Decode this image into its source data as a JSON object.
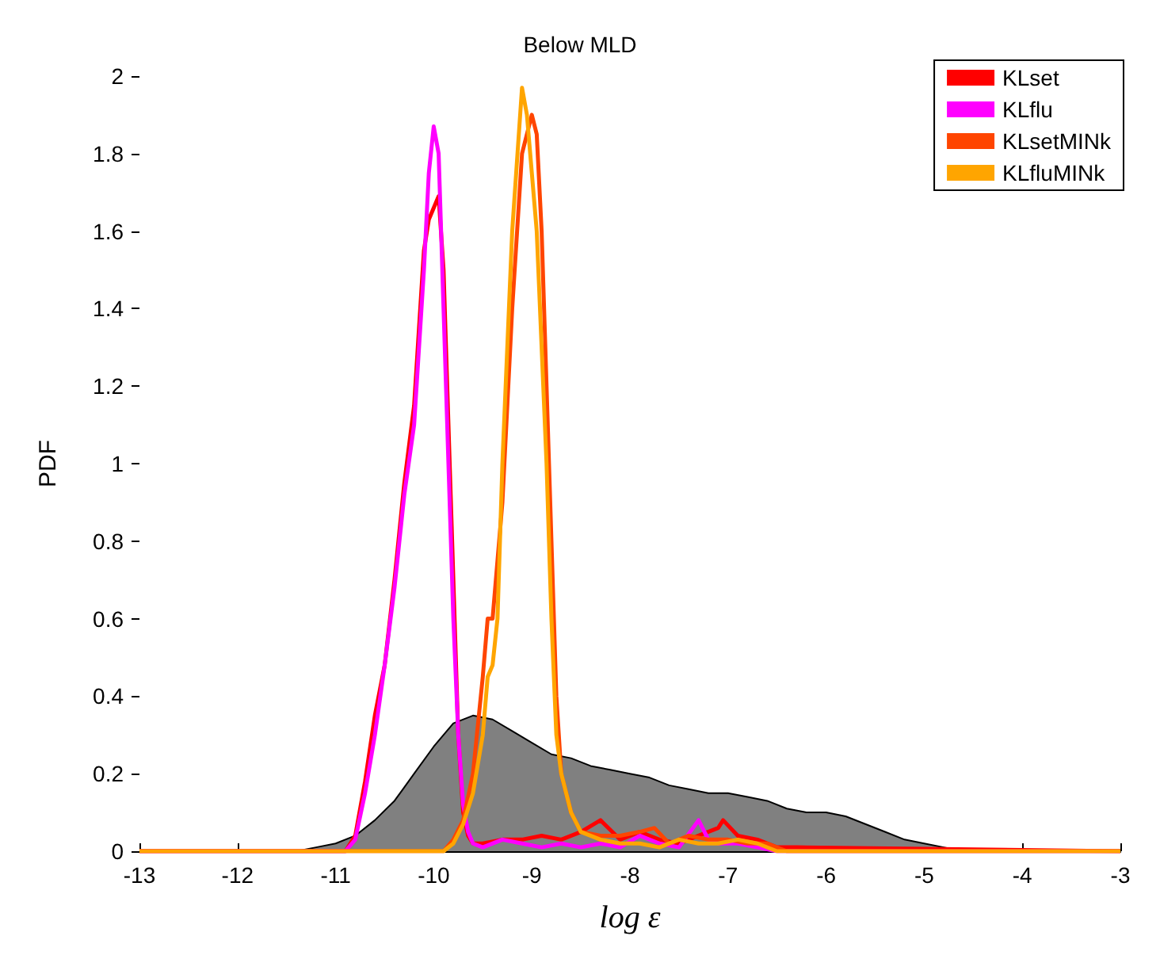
{
  "chart_data": {
    "type": "line",
    "title": "Below MLD",
    "xlabel": "log ε",
    "ylabel": "PDF",
    "xlim": [
      -13,
      -3
    ],
    "xticks": [
      -13,
      -12,
      -11,
      -10,
      -9,
      -8,
      -7,
      -6,
      -5,
      -4,
      -3
    ],
    "ylim": [
      0,
      2
    ],
    "yticks": [
      0,
      0.2,
      0.4,
      0.6,
      0.8,
      1,
      1.2,
      1.4,
      1.6,
      1.8,
      2
    ],
    "grid": false,
    "legend": "top right",
    "marker": "none",
    "line_style": "solid",
    "series": [
      {
        "type": "area",
        "color": "#808080",
        "x": [
          -13,
          -11.4,
          -11.2,
          -11,
          -10.8,
          -10.6,
          -10.4,
          -10.2,
          -10,
          -9.8,
          -9.6,
          -9.4,
          -9.2,
          -9,
          -8.8,
          -8.6,
          -8.4,
          -8.2,
          -8,
          -7.8,
          -7.6,
          -7.4,
          -7.2,
          -7,
          -6.8,
          -6.6,
          -6.4,
          -6.2,
          -6,
          -5.8,
          -5.6,
          -5.4,
          -5.2,
          -5,
          -4.8,
          -4.6,
          -3
        ],
        "values": [
          0,
          0,
          0.01,
          0.02,
          0.04,
          0.08,
          0.13,
          0.2,
          0.27,
          0.33,
          0.35,
          0.34,
          0.31,
          0.28,
          0.25,
          0.24,
          0.22,
          0.21,
          0.2,
          0.19,
          0.17,
          0.16,
          0.15,
          0.15,
          0.14,
          0.13,
          0.11,
          0.1,
          0.1,
          0.09,
          0.07,
          0.05,
          0.03,
          0.02,
          0.01,
          0,
          0
        ]
      },
      {
        "name": "KLset",
        "color": "#ff0000",
        "x": [
          -13,
          -10.9,
          -10.8,
          -10.7,
          -10.6,
          -10.5,
          -10.4,
          -10.3,
          -10.2,
          -10.1,
          -10.05,
          -10,
          -9.95,
          -9.9,
          -9.85,
          -9.8,
          -9.75,
          -9.7,
          -9.65,
          -9.6,
          -9.5,
          -9.3,
          -9.1,
          -8.9,
          -8.7,
          -8.5,
          -8.3,
          -8.1,
          -7.9,
          -7.7,
          -7.5,
          -7.3,
          -7.1,
          -7.05,
          -6.9,
          -6.7,
          -6.5,
          -6.3,
          -3
        ],
        "values": [
          0,
          0,
          0.04,
          0.18,
          0.35,
          0.48,
          0.7,
          0.95,
          1.15,
          1.55,
          1.63,
          1.66,
          1.69,
          1.5,
          1.1,
          0.7,
          0.3,
          0.1,
          0.04,
          0.02,
          0.02,
          0.03,
          0.03,
          0.04,
          0.03,
          0.05,
          0.08,
          0.03,
          0.05,
          0.03,
          0.02,
          0.04,
          0.06,
          0.08,
          0.04,
          0.03,
          0.01,
          0.01,
          0
        ]
      },
      {
        "name": "KLflu",
        "color": "#ff00ff",
        "x": [
          -13,
          -10.9,
          -10.8,
          -10.7,
          -10.6,
          -10.5,
          -10.4,
          -10.3,
          -10.2,
          -10.1,
          -10.05,
          -10,
          -9.95,
          -9.9,
          -9.85,
          -9.8,
          -9.75,
          -9.7,
          -9.65,
          -9.6,
          -9.5,
          -9.3,
          -9.1,
          -8.9,
          -8.7,
          -8.5,
          -8.3,
          -8.1,
          -7.9,
          -7.7,
          -7.5,
          -7.3,
          -7.2,
          -7.1,
          -6.9,
          -6.7,
          -6.5,
          -3
        ],
        "values": [
          0,
          0,
          0.03,
          0.15,
          0.3,
          0.48,
          0.68,
          0.92,
          1.1,
          1.5,
          1.75,
          1.87,
          1.8,
          1.4,
          1,
          0.6,
          0.3,
          0.12,
          0.05,
          0.02,
          0.01,
          0.03,
          0.02,
          0.01,
          0.02,
          0.01,
          0.02,
          0.01,
          0.04,
          0.02,
          0.01,
          0.08,
          0.03,
          0.02,
          0.02,
          0.01,
          0,
          0
        ]
      },
      {
        "name": "KLsetMINk",
        "color": "#ff4500",
        "x": [
          -13,
          -9.9,
          -9.8,
          -9.7,
          -9.6,
          -9.5,
          -9.45,
          -9.4,
          -9.3,
          -9.2,
          -9.1,
          -9,
          -8.95,
          -8.9,
          -8.85,
          -8.8,
          -8.75,
          -8.7,
          -8.6,
          -8.5,
          -8.3,
          -8.1,
          -7.9,
          -7.75,
          -7.6,
          -7.4,
          -7.2,
          -7,
          -6.8,
          -6.6,
          -6.4,
          -3
        ],
        "values": [
          0,
          0,
          0.03,
          0.08,
          0.2,
          0.45,
          0.6,
          0.6,
          0.9,
          1.4,
          1.8,
          1.9,
          1.85,
          1.6,
          1.2,
          0.8,
          0.4,
          0.2,
          0.1,
          0.05,
          0.04,
          0.04,
          0.05,
          0.06,
          0.02,
          0.04,
          0.03,
          0.03,
          0.02,
          0.02,
          0,
          0
        ]
      },
      {
        "name": "KLfluMINk",
        "color": "#ffa500",
        "x": [
          -13,
          -9.9,
          -9.8,
          -9.7,
          -9.6,
          -9.5,
          -9.45,
          -9.4,
          -9.35,
          -9.3,
          -9.2,
          -9.1,
          -9.05,
          -9,
          -8.95,
          -8.9,
          -8.85,
          -8.8,
          -8.75,
          -8.7,
          -8.6,
          -8.5,
          -8.3,
          -8.1,
          -7.9,
          -7.7,
          -7.5,
          -7.3,
          -7.1,
          -6.9,
          -6.7,
          -6.5,
          -3
        ],
        "values": [
          0,
          0,
          0.02,
          0.07,
          0.15,
          0.3,
          0.45,
          0.48,
          0.6,
          1.0,
          1.6,
          1.97,
          1.9,
          1.75,
          1.6,
          1.3,
          1,
          0.6,
          0.3,
          0.2,
          0.1,
          0.05,
          0.03,
          0.02,
          0.02,
          0.01,
          0.03,
          0.02,
          0.02,
          0.03,
          0.02,
          0,
          0
        ]
      }
    ]
  }
}
